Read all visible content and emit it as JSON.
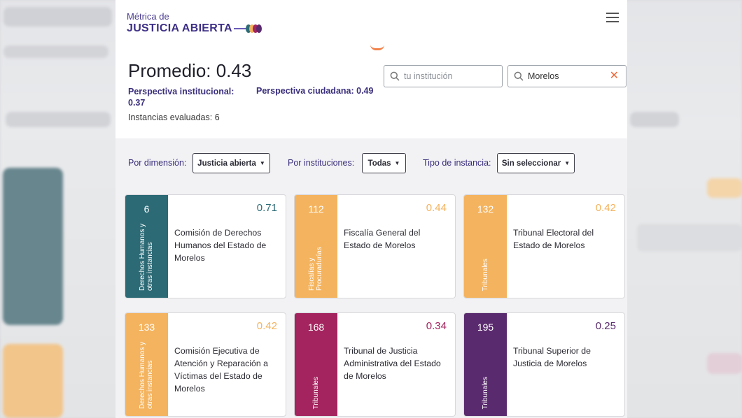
{
  "header": {
    "logo_top": "Métrica de",
    "logo_bottom": "JUSTICIA ABIERTA",
    "logo_dot_colors": [
      "#2c6b76",
      "#f4b35e",
      "#a3245e",
      "#5a2a6e"
    ]
  },
  "summary": {
    "promedio": "Promedio: 0.43",
    "perspectiva_institucional_label": "Perspectiva institucional:",
    "perspectiva_institucional_value": "0.37",
    "perspectiva_ciudadana": "Perspectiva ciudadana: 0.49",
    "instancias": "Instancias evaluadas: 6"
  },
  "search": {
    "institution_placeholder": "tu institución",
    "state_value": "Morelos"
  },
  "filters": {
    "dimension_label": "Por dimensión:",
    "dimension_value": "Justicia abierta",
    "institutions_label": "Por instituciones:",
    "institutions_value": "Todas",
    "instance_label": "Tipo de instancia:",
    "instance_value": "Sin seleccionar"
  },
  "colors": {
    "teal": "#2c6b76",
    "orange": "#f4b35e",
    "magenta": "#a3245e",
    "purple": "#5a2a6e",
    "accent_x": "#f06a3a"
  },
  "cards": [
    {
      "number": "6",
      "category": "Derechos Humanos y otras instancias",
      "score": "0.71",
      "name": "Comisión de Derechos Humanos del Estado de Morelos",
      "color": "teal"
    },
    {
      "number": "112",
      "category": "Fiscalías y Procuradurías",
      "score": "0.44",
      "name": "Fiscalía General del Estado de Morelos",
      "color": "orange"
    },
    {
      "number": "132",
      "category": "Tribunales",
      "score": "0.42",
      "name": "Tribunal Electoral del Estado de Morelos",
      "color": "orange"
    },
    {
      "number": "133",
      "category": "Derechos Humanos y otras instancias",
      "score": "0.42",
      "name": "Comisión Ejecutiva de Atención y Reparación a Víctimas del Estado de Morelos",
      "color": "orange"
    },
    {
      "number": "168",
      "category": "Tribunales",
      "score": "0.34",
      "name": "Tribunal de Justicia Administrativa del Estado de Morelos",
      "color": "magenta"
    },
    {
      "number": "195",
      "category": "Tribunales",
      "score": "0.25",
      "name": "Tribunal Superior de Justicia de Morelos",
      "color": "purple"
    }
  ]
}
